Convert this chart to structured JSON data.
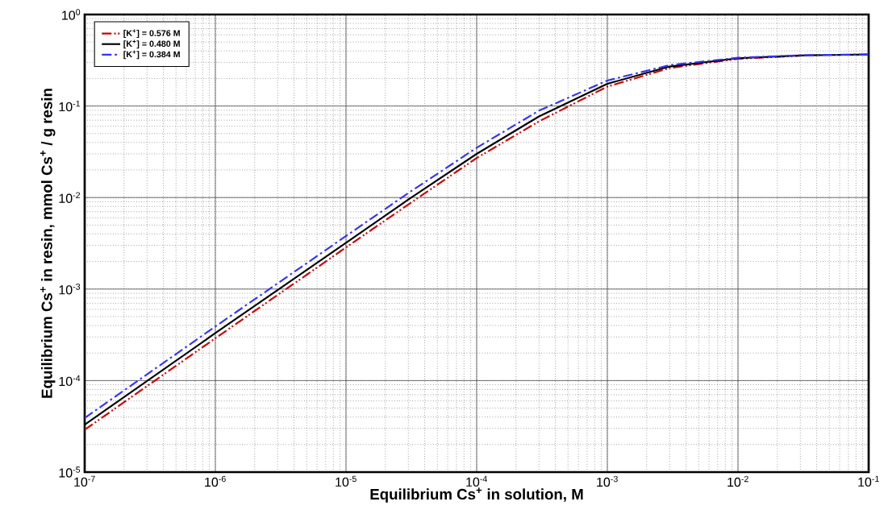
{
  "chart_data": {
    "type": "line",
    "xlabel": "Equilibrium Cs$^{+}$ in solution, M",
    "ylabel": "Equilibrium Cs$^{+}$ in resin, mmol Cs$^{+}$ / g resin",
    "x": [
      1e-07,
      1e-06,
      1e-05,
      3e-05,
      0.0001,
      0.0003,
      0.001,
      0.003,
      0.01,
      0.03,
      0.1
    ],
    "series": [
      {
        "name": "[K$^{+}$] = 0.576 M",
        "color": "#cc0000",
        "line_style": "dashdotdotted",
        "values": [
          2.9e-05,
          0.00029,
          0.00285,
          0.0084,
          0.027,
          0.068,
          0.163,
          0.26,
          0.328,
          0.355,
          null
        ]
      },
      {
        "name": "[K$^{+}$] = 0.480 M",
        "color": "#000000",
        "line_style": "solid",
        "values": [
          3.3e-05,
          0.00033,
          0.0032,
          0.0095,
          0.03,
          0.077,
          0.175,
          0.27,
          0.333,
          0.357,
          0.366
        ]
      },
      {
        "name": "[K$^{+}$] = 0.384 M",
        "color": "#3333ff",
        "line_style": "dashdotted",
        "values": [
          3.9e-05,
          0.00039,
          0.0038,
          0.0112,
          0.035,
          0.089,
          0.19,
          0.28,
          0.337,
          0.359,
          0.367
        ]
      }
    ],
    "log": "xy",
    "xlim": [
      1e-07,
      0.1
    ],
    "ylim": [
      1e-05,
      1
    ],
    "xticks": [
      {
        "value": 1e-07,
        "label": "10$^{-7}$"
      },
      {
        "value": 1e-06,
        "label": "10$^{-6}$"
      },
      {
        "value": 1e-05,
        "label": "10$^{-5}$"
      },
      {
        "value": 0.0001,
        "label": "10$^{-4}$"
      },
      {
        "value": 0.001,
        "label": "10$^{-3}$"
      },
      {
        "value": 0.01,
        "label": "10$^{-2}$"
      },
      {
        "value": 0.1,
        "label": "10$^{-1}$"
      }
    ],
    "yticks": [
      {
        "value": 1e-05,
        "label": "10$^{-5}$"
      },
      {
        "value": 0.0001,
        "label": "10$^{-4}$"
      },
      {
        "value": 0.001,
        "label": "10$^{-3}$"
      },
      {
        "value": 0.01,
        "label": "10$^{-2}$"
      },
      {
        "value": 0.1,
        "label": "10$^{-1}$"
      },
      {
        "value": 1,
        "label": "10$^{0}$"
      }
    ],
    "grid": true,
    "legend": "top left",
    "marker": "none"
  }
}
